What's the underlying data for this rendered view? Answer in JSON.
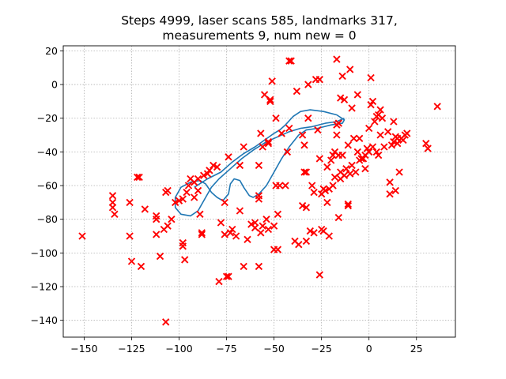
{
  "chart_data": {
    "type": "scatter",
    "title_line1": "Steps 4999, laser scans 585, landmarks 317,",
    "title_line2": "measurements 9, num new = 0",
    "xlabel": "",
    "ylabel": "",
    "xlim": [
      -161,
      45.5
    ],
    "ylim": [
      -150,
      23
    ],
    "xticks": [
      -150,
      -125,
      -100,
      -75,
      -50,
      -25,
      0,
      25
    ],
    "yticks": [
      -140,
      -120,
      -100,
      -80,
      -60,
      -40,
      -20,
      0,
      20
    ],
    "grid": true,
    "landmark_color": "#ff0000",
    "trajectory_color": "#1f77b4",
    "landmarks": [
      [
        -151,
        -90
      ],
      [
        -135,
        -66
      ],
      [
        -135,
        -70
      ],
      [
        -135,
        -73
      ],
      [
        -134,
        -77
      ],
      [
        -126,
        -70
      ],
      [
        -126,
        -90
      ],
      [
        -125,
        -105
      ],
      [
        -122,
        -55
      ],
      [
        -121,
        -55
      ],
      [
        -120,
        -108
      ],
      [
        -118,
        -74
      ],
      [
        -112,
        -78
      ],
      [
        -112,
        -80
      ],
      [
        -112,
        -89
      ],
      [
        -110,
        -102
      ],
      [
        -108,
        -86
      ],
      [
        -107,
        -64
      ],
      [
        -106,
        -63
      ],
      [
        -106,
        -84
      ],
      [
        -107,
        -141
      ],
      [
        -104,
        -80
      ],
      [
        -102,
        -70
      ],
      [
        -100,
        -69
      ],
      [
        -98,
        -94
      ],
      [
        -98,
        -96
      ],
      [
        -97,
        -104
      ],
      [
        -98,
        -68
      ],
      [
        -96,
        -64
      ],
      [
        -95,
        -60
      ],
      [
        -94,
        -56
      ],
      [
        -92,
        -58
      ],
      [
        -92,
        -67
      ],
      [
        -90,
        -63
      ],
      [
        -90,
        -56
      ],
      [
        -89,
        -77
      ],
      [
        -88,
        -88
      ],
      [
        -88,
        -89
      ],
      [
        -87,
        -54
      ],
      [
        -85,
        -53
      ],
      [
        -84,
        -51
      ],
      [
        -82,
        -48
      ],
      [
        -80,
        -49
      ],
      [
        -79,
        -117
      ],
      [
        -78,
        -82
      ],
      [
        -76,
        -70
      ],
      [
        -76,
        -89
      ],
      [
        -75,
        -114
      ],
      [
        -74,
        -114
      ],
      [
        -74,
        -43
      ],
      [
        -73,
        -88
      ],
      [
        -72,
        -86
      ],
      [
        -70,
        -90
      ],
      [
        -68,
        -48
      ],
      [
        -68,
        -75
      ],
      [
        -66,
        -37
      ],
      [
        -66,
        -108
      ],
      [
        -64,
        -92
      ],
      [
        -62,
        -83
      ],
      [
        -60,
        -82
      ],
      [
        -60,
        -85
      ],
      [
        -58,
        -66
      ],
      [
        -58,
        -68
      ],
      [
        -58,
        -48
      ],
      [
        -57,
        -29
      ],
      [
        -58,
        -108
      ],
      [
        -57,
        -88
      ],
      [
        -56,
        -84
      ],
      [
        -56,
        -37
      ],
      [
        -55,
        -6
      ],
      [
        -54,
        -80
      ],
      [
        -53,
        -35
      ],
      [
        -53,
        -86
      ],
      [
        -53,
        -34
      ],
      [
        -52,
        -9
      ],
      [
        -52,
        -10
      ],
      [
        -51,
        2
      ],
      [
        -50,
        -98
      ],
      [
        -50,
        -84
      ],
      [
        -49,
        -20
      ],
      [
        -49,
        -60
      ],
      [
        -48,
        -77
      ],
      [
        -48,
        -98
      ],
      [
        -47,
        -60
      ],
      [
        -46,
        -29
      ],
      [
        -44,
        -60
      ],
      [
        -43,
        -40
      ],
      [
        -42,
        -26
      ],
      [
        -42,
        14
      ],
      [
        -41,
        14
      ],
      [
        -39,
        -93
      ],
      [
        -38,
        -4
      ],
      [
        -37,
        -95
      ],
      [
        -35,
        -30
      ],
      [
        -35,
        -72
      ],
      [
        -34,
        -36
      ],
      [
        -34,
        -52
      ],
      [
        -33,
        -52
      ],
      [
        -33,
        -73
      ],
      [
        -33,
        -93
      ],
      [
        -32,
        0
      ],
      [
        -32,
        -20
      ],
      [
        -31,
        -87
      ],
      [
        -30,
        -60
      ],
      [
        -29,
        -64
      ],
      [
        -29,
        -88
      ],
      [
        -28,
        3
      ],
      [
        -27,
        -27
      ],
      [
        -26,
        3
      ],
      [
        -26,
        -44
      ],
      [
        -26,
        -113
      ],
      [
        -25,
        -86
      ],
      [
        -25,
        -65
      ],
      [
        -24,
        -87
      ],
      [
        -24,
        -62
      ],
      [
        -23,
        -63
      ],
      [
        -22,
        -49
      ],
      [
        -22,
        -70
      ],
      [
        -21,
        -90
      ],
      [
        -21,
        -62
      ],
      [
        -20,
        -45
      ],
      [
        -19,
        -42
      ],
      [
        -19,
        -60
      ],
      [
        -18,
        -55
      ],
      [
        -18,
        -40
      ],
      [
        -17,
        15
      ],
      [
        -17,
        -30
      ],
      [
        -17,
        -24
      ],
      [
        -16,
        -42
      ],
      [
        -16,
        -23
      ],
      [
        -16,
        -79
      ],
      [
        -15,
        -8
      ],
      [
        -15,
        -52
      ],
      [
        -15,
        -56
      ],
      [
        -14,
        -42
      ],
      [
        -14,
        5
      ],
      [
        -13,
        -9
      ],
      [
        -13,
        -54
      ],
      [
        -12,
        -50
      ],
      [
        -11,
        -36
      ],
      [
        -11,
        -71
      ],
      [
        -11,
        -72
      ],
      [
        -10,
        -53
      ],
      [
        -10,
        9
      ],
      [
        -9,
        -48
      ],
      [
        -9,
        -14
      ],
      [
        -8,
        -32
      ],
      [
        -7,
        -52
      ],
      [
        -6,
        -6
      ],
      [
        -6,
        -40
      ],
      [
        -5,
        -32
      ],
      [
        -5,
        -45
      ],
      [
        -4,
        -44
      ],
      [
        -3,
        -44
      ],
      [
        -2,
        -50
      ],
      [
        -2,
        -42
      ],
      [
        -1,
        -38
      ],
      [
        0,
        -26
      ],
      [
        0,
        -40
      ],
      [
        1,
        4
      ],
      [
        1,
        -12
      ],
      [
        2,
        -37
      ],
      [
        2,
        -10
      ],
      [
        3,
        -22
      ],
      [
        4,
        -19
      ],
      [
        4,
        -40
      ],
      [
        5,
        -42
      ],
      [
        5,
        -18
      ],
      [
        6,
        -15
      ],
      [
        6,
        -30
      ],
      [
        7,
        -20
      ],
      [
        8,
        -37
      ],
      [
        10,
        -28
      ],
      [
        11,
        -58
      ],
      [
        11,
        -65
      ],
      [
        12,
        -36
      ],
      [
        13,
        -34
      ],
      [
        13,
        -22
      ],
      [
        14,
        -63
      ],
      [
        14,
        -31
      ],
      [
        15,
        -32
      ],
      [
        15,
        -35
      ],
      [
        16,
        -52
      ],
      [
        17,
        -32
      ],
      [
        18,
        -33
      ],
      [
        19,
        -30
      ],
      [
        20,
        -29
      ],
      [
        30,
        -35
      ],
      [
        31,
        -38
      ],
      [
        36,
        -13
      ]
    ],
    "trajectory": [
      [
        -92,
        -61
      ],
      [
        -85,
        -56
      ],
      [
        -78,
        -52
      ],
      [
        -72,
        -46
      ],
      [
        -66,
        -41
      ],
      [
        -60,
        -37
      ],
      [
        -55,
        -33
      ],
      [
        -50,
        -29
      ],
      [
        -47,
        -27
      ],
      [
        -44,
        -24
      ],
      [
        -40,
        -19
      ],
      [
        -36,
        -16
      ],
      [
        -31,
        -15
      ],
      [
        -24,
        -16
      ],
      [
        -17,
        -18
      ],
      [
        -13,
        -21
      ],
      [
        -14,
        -23
      ],
      [
        -20,
        -24
      ],
      [
        -27,
        -26
      ],
      [
        -33,
        -27
      ],
      [
        -37,
        -30
      ],
      [
        -42,
        -37
      ],
      [
        -46,
        -44
      ],
      [
        -50,
        -52
      ],
      [
        -54,
        -60
      ],
      [
        -58,
        -65
      ],
      [
        -61,
        -67
      ],
      [
        -63,
        -66
      ],
      [
        -66,
        -61
      ],
      [
        -68,
        -57
      ],
      [
        -71,
        -56
      ],
      [
        -73,
        -59
      ],
      [
        -74,
        -65
      ],
      [
        -77,
        -69
      ],
      [
        -80,
        -67
      ],
      [
        -83,
        -64
      ],
      [
        -86,
        -59
      ],
      [
        -89,
        -57
      ],
      [
        -94,
        -58
      ],
      [
        -99,
        -61
      ],
      [
        -102,
        -67
      ],
      [
        -102,
        -73
      ],
      [
        -99,
        -77
      ],
      [
        -94,
        -78
      ],
      [
        -90,
        -75
      ],
      [
        -86,
        -67
      ],
      [
        -83,
        -61
      ],
      [
        -79,
        -56
      ],
      [
        -73,
        -50
      ],
      [
        -67,
        -44
      ],
      [
        -61,
        -39
      ],
      [
        -54,
        -34
      ],
      [
        -48,
        -31
      ],
      [
        -42,
        -28
      ],
      [
        -36,
        -26
      ],
      [
        -30,
        -25
      ],
      [
        -23,
        -23
      ],
      [
        -17,
        -22
      ],
      [
        -13,
        -20
      ]
    ]
  }
}
